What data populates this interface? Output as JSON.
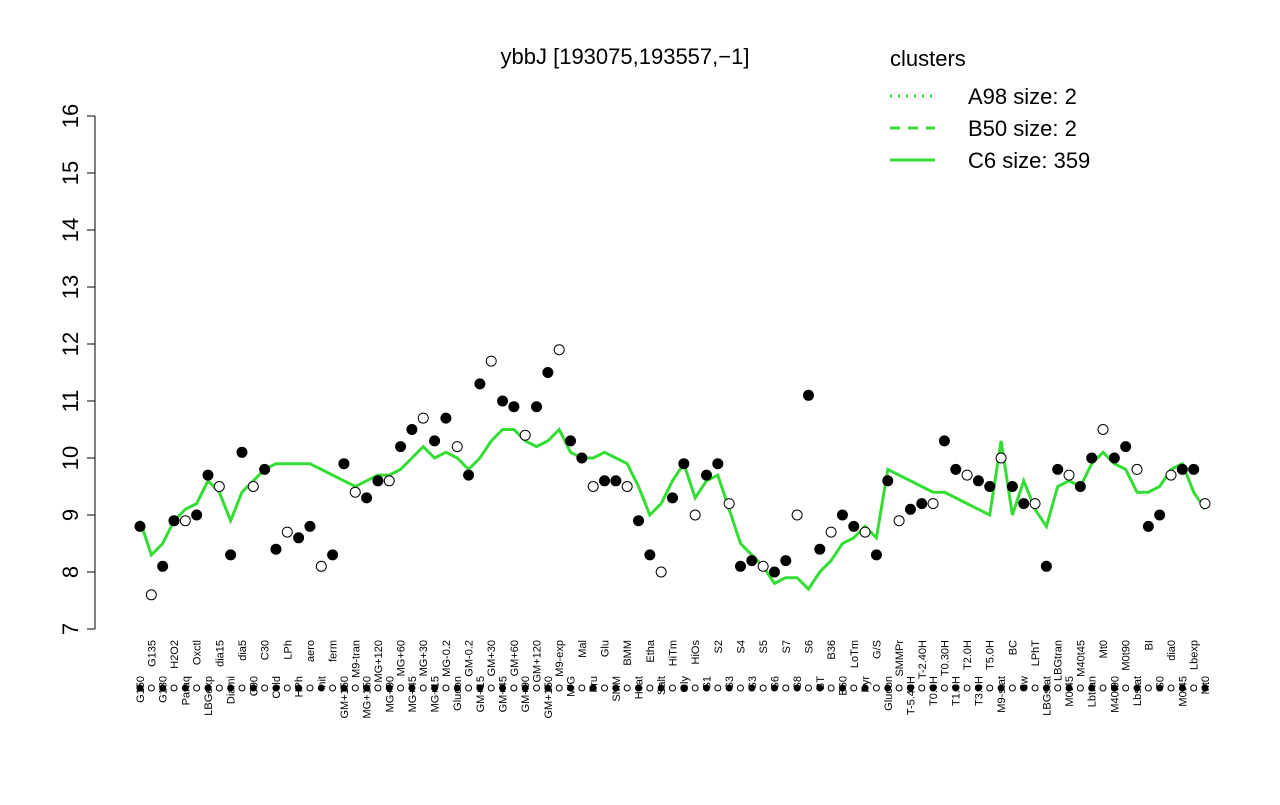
{
  "chart_data": {
    "type": "line",
    "title": "ybbJ [193075,193557,−1]",
    "categories": [
      "G150",
      "G135",
      "G180",
      "H2O2",
      "Paraq",
      "Oxctl",
      "LBGexp",
      "dia15",
      "Diami",
      "dia5",
      "C90",
      "C30",
      "Cold",
      "LPh",
      "HPh",
      "aero",
      "nit",
      "ferm",
      "GM+150",
      "M9-tran",
      "MG+150",
      "MG+120",
      "MG+90",
      "MG+60",
      "MG+45",
      "MG+30",
      "MG+15",
      "MG-0.2",
      "Glucon",
      "GM-0.2",
      "GM+15",
      "GM+30",
      "GM+45",
      "GM+60",
      "GM+90",
      "GM+120",
      "GM+150",
      "M9-exp",
      "M/G",
      "Mal",
      "Fru",
      "Glu",
      "SMM",
      "BMM",
      "Heat",
      "Etha",
      "Salt",
      "HiTm",
      "Gly",
      "HiOs",
      "S1",
      "S2",
      "S3",
      "S4",
      "S3",
      "S5",
      "S6",
      "S7",
      "S8",
      "S6",
      "BT",
      "B36",
      "B60",
      "LoTm",
      "Pyr",
      "G/S",
      "Glucon",
      "SMMPr",
      "T-5.40H",
      "T-2.40H",
      "T0.0H",
      "T0.30H",
      "T1.0H",
      "T2.0H",
      "T3.0H",
      "T5.0H",
      "M9-stat",
      "BC",
      "Sw",
      "LPhT",
      "LBGstat",
      "LBGtran",
      "M0t45",
      "M40t45",
      "Lbtran",
      "Mt0",
      "M40t90",
      "M0t90",
      "Lbstat",
      "BI",
      "S0",
      "dia0",
      "M0t45",
      "Lbexp",
      "Mt0"
    ],
    "values": [
      8.8,
      7.6,
      8.1,
      8.9,
      8.9,
      9.0,
      9.7,
      9.5,
      8.3,
      10.1,
      9.5,
      9.8,
      8.4,
      8.7,
      8.6,
      8.8,
      8.1,
      8.3,
      9.9,
      9.4,
      9.3,
      9.6,
      9.6,
      10.2,
      10.5,
      10.7,
      10.3,
      10.7,
      10.2,
      9.7,
      11.3,
      11.7,
      11.0,
      10.9,
      10.4,
      10.9,
      11.5,
      11.9,
      10.3,
      10.0,
      9.5,
      9.6,
      9.6,
      9.5,
      8.9,
      8.3,
      8.0,
      9.3,
      9.9,
      9.0,
      9.7,
      9.9,
      9.2,
      8.1,
      8.2,
      8.1,
      8.0,
      8.2,
      9.0,
      11.1,
      8.4,
      8.7,
      9.0,
      8.8,
      8.7,
      8.3,
      9.6,
      8.9,
      9.1,
      9.2,
      9.2,
      10.3,
      9.8,
      9.7,
      9.6,
      9.5,
      10.0,
      9.5,
      9.2,
      9.2,
      8.1,
      9.8,
      9.7,
      9.5,
      10.0,
      10.5,
      10.0,
      10.2,
      9.8,
      8.8,
      9.0,
      9.7,
      9.8,
      9.8,
      9.2
    ],
    "marker_color": "#000000",
    "series": [
      {
        "name": "C6 size: 359",
        "color": "#33dd33",
        "style": "solid",
        "values": [
          8.9,
          8.3,
          8.5,
          8.9,
          9.1,
          9.2,
          9.6,
          9.4,
          8.9,
          9.4,
          9.6,
          9.8,
          9.9,
          9.9,
          9.9,
          9.9,
          9.8,
          9.7,
          9.6,
          9.5,
          9.6,
          9.7,
          9.7,
          9.8,
          10.0,
          10.2,
          10.0,
          10.1,
          10.0,
          9.8,
          10.0,
          10.3,
          10.5,
          10.5,
          10.3,
          10.2,
          10.3,
          10.5,
          10.1,
          10.0,
          10.0,
          10.1,
          10.0,
          9.9,
          9.5,
          9.0,
          9.2,
          9.6,
          9.9,
          9.3,
          9.6,
          9.7,
          9.1,
          8.5,
          8.3,
          8.1,
          7.8,
          7.9,
          7.9,
          7.7,
          8.0,
          8.2,
          8.5,
          8.6,
          8.8,
          8.6,
          9.8,
          9.7,
          9.6,
          9.5,
          9.4,
          9.4,
          9.3,
          9.2,
          9.1,
          9.0,
          10.3,
          9.0,
          9.6,
          9.1,
          8.8,
          9.5,
          9.6,
          9.5,
          9.9,
          10.1,
          9.9,
          9.8,
          9.4,
          9.4,
          9.5,
          9.8,
          9.9,
          9.4,
          9.1
        ]
      }
    ],
    "legend_title": "clusters",
    "legend": [
      {
        "label": "A98 size: 2",
        "style": "dotted"
      },
      {
        "label": "B50 size: 2",
        "style": "dashed"
      },
      {
        "label": "C6 size: 359",
        "style": "solid"
      }
    ],
    "legend_position": "top-right",
    "ylim": [
      7,
      16
    ],
    "yticks": [
      7,
      8,
      9,
      10,
      11,
      12,
      13,
      14,
      15,
      16
    ]
  }
}
